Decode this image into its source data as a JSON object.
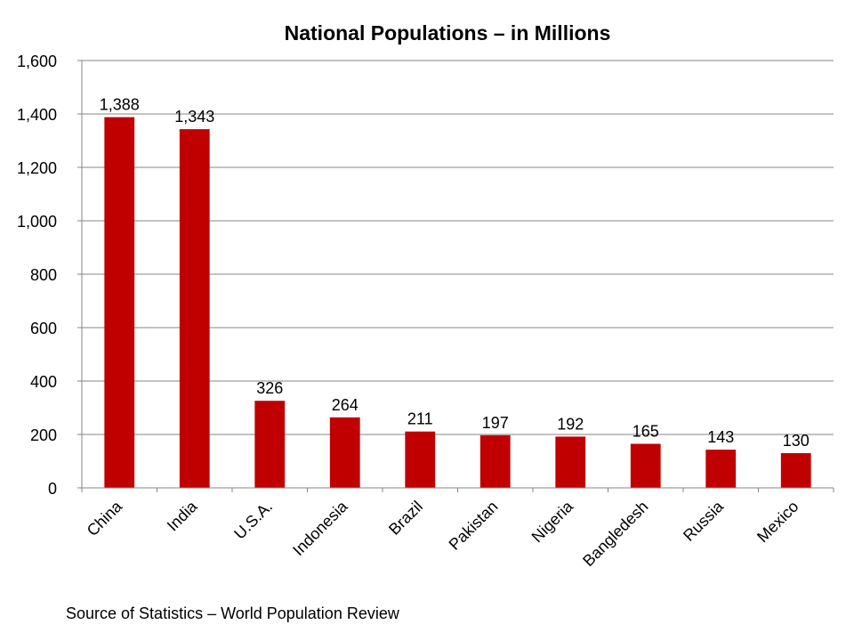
{
  "chart_data": {
    "type": "bar",
    "title": "National Populations – in Millions",
    "categories": [
      "China",
      "India",
      "U.S.A.",
      "Indonesia",
      "Brazil",
      "Pakistan",
      "Nigeria",
      "Bangledesh",
      "Russia",
      "Mexico"
    ],
    "values": [
      1388,
      1343,
      326,
      264,
      211,
      197,
      192,
      165,
      143,
      130
    ],
    "data_labels": [
      "1,388",
      "1,343",
      "326",
      "264",
      "211",
      "197",
      "192",
      "165",
      "143",
      "130"
    ],
    "ylim": [
      0,
      1600
    ],
    "y_ticks": [
      0,
      200,
      400,
      600,
      800,
      1000,
      1200,
      1400,
      1600
    ],
    "y_tick_labels": [
      "0",
      "200",
      "400",
      "600",
      "800",
      "1,000",
      "1,200",
      "1,400",
      "1,600"
    ],
    "xlabel": "",
    "ylabel": "",
    "grid": true,
    "legend": "none",
    "bar_color": "#c00000",
    "grid_color": "#868686"
  },
  "footer": {
    "source": "Source of Statistics – World Population Review"
  }
}
